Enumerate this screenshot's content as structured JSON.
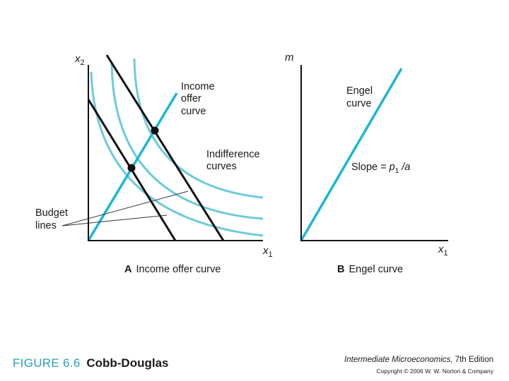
{
  "panel_a": {
    "y_axis_label_base": "x",
    "y_axis_label_sub": "2",
    "x_axis_label_base": "x",
    "x_axis_label_sub": "1",
    "caption_letter": "A",
    "caption_text": "Income offer curve",
    "income_offer_label": [
      "Income",
      "offer",
      "curve"
    ],
    "indifference_label": [
      "Indifference",
      "curves"
    ],
    "budget_label": [
      "Budget",
      "lines"
    ]
  },
  "panel_b": {
    "y_axis_label": "m",
    "x_axis_label_base": "x",
    "x_axis_label_sub": "1",
    "caption_letter": "B",
    "caption_text": "Engel curve",
    "engel_label": [
      "Engel",
      "curve"
    ],
    "slope_prefix": "Slope = ",
    "slope_p": "p",
    "slope_sub": "1",
    "slope_suffix": " /a"
  },
  "footer": {
    "figure_number": "FIGURE 6.6",
    "figure_title": "Cobb-Douglas",
    "book_title": "Intermediate Microeconomics,",
    "edition": " 7th Edition",
    "copyright": "Copyright © 2006 W. W. Norton & Company"
  },
  "colors": {
    "curve": "#5bc3d4",
    "line": "#1bb7d4",
    "black": "#111111"
  }
}
